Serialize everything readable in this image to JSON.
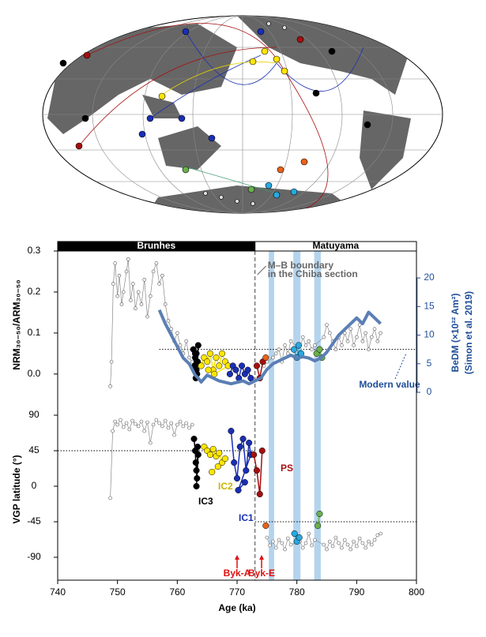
{
  "chart_data": [
    {
      "type": "scatter",
      "polarity": [
        {
          "name": "Brunhes",
          "range": [
            740,
            773
          ]
        },
        {
          "name": "Matuyama",
          "range": [
            773,
            800
          ]
        }
      ],
      "ylabel": "NRM₃₀₋₅₀/ARM₃₀₋₅₀",
      "y2label": "BeDM (×10²² Am²)",
      "y2note": "(Simon et al. 2019)",
      "xlim": [
        740,
        800
      ],
      "ylim": [
        -0.06,
        0.3
      ],
      "yticks": [
        {
          "value": 0,
          "label": "0.0"
        },
        0.1,
        0.2,
        0.3
      ],
      "y2lim": [
        -1.1,
        24.7
      ],
      "y2ticks": [
        0,
        5,
        10,
        15,
        20
      ],
      "boundary": {
        "x": 773,
        "label": [
          "M–B boundary",
          "in the Chiba section"
        ]
      },
      "bands": [
        [
          775.3,
          776.2
        ],
        [
          779.4,
          780.6
        ],
        [
          782.9,
          784
        ]
      ],
      "reference": {
        "value": 7.5,
        "axis": "y2",
        "from": 757,
        "label": "Modern value"
      },
      "series": [
        {
          "color": "#888888",
          "x": [
            748.8,
            749,
            749.3,
            749.6,
            750,
            750.3,
            750.7,
            751,
            751.5,
            751.8,
            752.2,
            752.6,
            753,
            753.5,
            754,
            754.5,
            755,
            755.5,
            756,
            756.5,
            757,
            757.5,
            758,
            758.5,
            759,
            759.5,
            760,
            760.5,
            761,
            761.5,
            762,
            762.5
          ],
          "values": [
            -0.03,
            0.03,
            0.22,
            0.27,
            0.19,
            0.24,
            0.17,
            0.2,
            0.25,
            0.28,
            0.18,
            0.22,
            0.16,
            0.2,
            0.17,
            0.23,
            0.14,
            0.19,
            0.25,
            0.27,
            0.22,
            0.24,
            0.17,
            0.13,
            0.11,
            0.08,
            0.1,
            0.07,
            0.05,
            0.08,
            0.04,
            0.03
          ]
        },
        {
          "color": "#888888",
          "x": [
            774.5,
            775,
            776,
            776.5,
            777,
            777.5,
            778,
            778.5,
            779,
            780.5,
            781,
            781.5,
            782,
            782.5,
            783,
            784.5,
            785,
            785.5,
            786,
            786.5,
            787,
            787.5,
            788,
            788.5,
            789,
            789.5,
            790,
            790.5,
            791,
            791.5,
            792,
            792.5,
            793,
            793.5,
            794
          ],
          "values": [
            0.02,
            0.03,
            0.04,
            0.05,
            0.06,
            0.03,
            0.07,
            0.05,
            0.08,
            0.06,
            0.09,
            0.07,
            0.08,
            0.06,
            0.07,
            0.09,
            0.12,
            0.1,
            0.08,
            0.06,
            0.09,
            0.07,
            0.1,
            0.08,
            0.11,
            0.07,
            0.09,
            0.12,
            0.08,
            0.1,
            0.06,
            0.09,
            0.11,
            0.08,
            0.1
          ]
        },
        {
          "color": "#000000",
          "x": [
            762.7,
            762.9,
            763,
            763.1,
            763.2,
            763.3,
            763.4,
            763.5,
            763.2,
            763
          ],
          "values": [
            0.06,
            0.02,
            0.04,
            -0.01,
            0.05,
            0,
            0.03,
            0.07,
            0.01,
            0.05
          ]
        },
        {
          "color": "#ffe600",
          "x": [
            764,
            764.5,
            765,
            765.5,
            766,
            766.5,
            767,
            767.5,
            768,
            768.5,
            766.2,
            765.2
          ],
          "values": [
            0.02,
            0.04,
            0.03,
            0.05,
            0.01,
            0.04,
            0.02,
            0.05,
            0.03,
            0.02,
            0,
            0.01
          ]
        },
        {
          "color": "#1a2fb5",
          "x": [
            768.8,
            769.3,
            769.8,
            770.3,
            770.8,
            771.3,
            771.8,
            772.3
          ],
          "values": [
            0,
            0.02,
            0.01,
            -0.01,
            0.02,
            0,
            0.01,
            -0.01
          ]
        },
        {
          "color": "#a50f0f",
          "x": [
            773.3,
            773.8,
            774.3
          ],
          "values": [
            0.02,
            -0.01,
            0.03
          ]
        },
        {
          "color": "#e8621a",
          "x": [
            774.8
          ],
          "values": [
            0.04
          ]
        },
        {
          "color": "#29a9e0",
          "x": [
            779.5,
            780,
            780.3,
            780.7
          ],
          "values": [
            0.06,
            0.04,
            0.07,
            0.05
          ]
        },
        {
          "color": "#6ab04c",
          "x": [
            783.3,
            783.8,
            784.2
          ],
          "values": [
            0.05,
            0.06,
            0.04
          ]
        },
        {
          "color": "#5b7fb5",
          "axis": "y2",
          "style": "line",
          "x": [
            757,
            758,
            759,
            760,
            761,
            762,
            763,
            763.5,
            764,
            765,
            767,
            769,
            771,
            772,
            773,
            774,
            775,
            776,
            777,
            778,
            779,
            780,
            781,
            782,
            783,
            784,
            785,
            786,
            787,
            788,
            789,
            790,
            791,
            792,
            793,
            794
          ],
          "values": [
            14.4,
            12,
            10,
            8,
            6,
            5,
            3,
            2.5,
            1.8,
            3,
            2,
            1.5,
            2,
            1.5,
            2,
            2.5,
            4,
            5,
            5.5,
            6,
            6.5,
            6,
            6.2,
            6,
            5.5,
            6,
            7,
            8.5,
            10,
            11,
            12,
            13,
            12,
            14,
            13,
            12
          ]
        }
      ]
    },
    {
      "type": "scatter",
      "ylabel": "VGP latitude (°)",
      "xlabel": "Age (ka)",
      "xlim": [
        740,
        800
      ],
      "xticks": [
        740,
        750,
        760,
        770,
        780,
        790,
        800
      ],
      "ylim": [
        -119,
        111
      ],
      "yticks": [
        -90,
        -45,
        0,
        45,
        90
      ],
      "references": [
        {
          "value": 45,
          "range": [
            740,
            773
          ]
        },
        {
          "value": -45,
          "range": [
            773,
            800
          ]
        }
      ],
      "events": [
        {
          "label": "Byk-A",
          "x": 770
        },
        {
          "label": "Byk-E",
          "x": 774.1
        }
      ],
      "series": [
        {
          "color": "#888888",
          "x": [
            748.8,
            749.2,
            749.6,
            750,
            750.5,
            751,
            751.5,
            752,
            752.5,
            753,
            753.5,
            754,
            754.5,
            755,
            755.5,
            756,
            756.5,
            757,
            757.5,
            758,
            758.5,
            759,
            759.5,
            760,
            760.5,
            761,
            761.5,
            762,
            762.5
          ],
          "values": [
            -15,
            70,
            82,
            78,
            84,
            75,
            80,
            72,
            83,
            79,
            76,
            82,
            70,
            81,
            55,
            78,
            84,
            80,
            76,
            83,
            74,
            80,
            65,
            78,
            82,
            76,
            80,
            74,
            78
          ]
        },
        {
          "color": "#888888",
          "x": [
            775,
            775.5,
            776,
            776.5,
            777,
            777.5,
            778,
            778.5,
            779,
            780.5,
            781,
            781.5,
            782,
            782.5,
            783,
            784.5,
            785,
            785.5,
            786,
            786.5,
            787,
            787.5,
            788,
            788.5,
            789,
            789.5,
            790,
            790.5,
            791,
            791.5,
            792,
            792.5,
            793,
            793.5,
            794
          ],
          "values": [
            -65,
            -75,
            -70,
            -78,
            -68,
            -72,
            -80,
            -66,
            -74,
            -70,
            -78,
            -72,
            -60,
            -75,
            -68,
            -74,
            -80,
            -70,
            -76,
            -65,
            -72,
            -78,
            -68,
            -74,
            -80,
            -70,
            -76,
            -66,
            -72,
            -78,
            -70,
            -74,
            -68,
            -62,
            -60
          ]
        },
        {
          "name": "IC3",
          "color": "#000000",
          "x": [
            762.8,
            763,
            763.1,
            763.2,
            763.3,
            763.4,
            763.5,
            763.2
          ],
          "values": [
            60,
            45,
            30,
            20,
            10,
            50,
            40,
            0
          ]
        },
        {
          "name": "IC2",
          "color": "#ffe600",
          "x": [
            764.5,
            765,
            765.5,
            766,
            766.5,
            767,
            767.5,
            768,
            765.8,
            766.8
          ],
          "values": [
            50,
            45,
            40,
            47,
            38,
            42,
            30,
            35,
            18,
            25
          ]
        },
        {
          "name": "IC1",
          "color": "#1a2fb5",
          "x": [
            769,
            769.5,
            770,
            770.5,
            771,
            771.5,
            772,
            772.3,
            770.2,
            771.3
          ],
          "values": [
            70,
            30,
            10,
            50,
            60,
            20,
            55,
            40,
            -5,
            5
          ]
        },
        {
          "name": "PS",
          "color": "#a50f0f",
          "x": [
            772.8,
            773.3,
            773.8,
            774.2
          ],
          "values": [
            40,
            20,
            -10,
            45
          ]
        },
        {
          "color": "#e8621a",
          "x": [
            774.8
          ],
          "values": [
            -50
          ]
        },
        {
          "color": "#29a9e0",
          "x": [
            779.6,
            780,
            780.4
          ],
          "values": [
            -60,
            -70,
            -65
          ]
        },
        {
          "color": "#6ab04c",
          "x": [
            783.5,
            783.8
          ],
          "values": [
            -50,
            -35
          ]
        }
      ]
    }
  ]
}
